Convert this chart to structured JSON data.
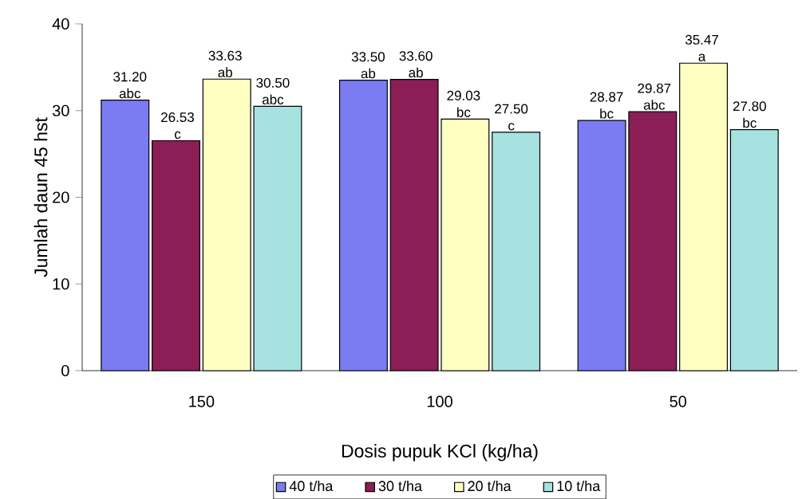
{
  "chart_data": {
    "type": "bar",
    "xlabel": "Dosis pupuk KCl (kg/ha)",
    "ylabel": "Jumlah  daun 45 hst",
    "categories": [
      "150",
      "100",
      "50"
    ],
    "series": [
      {
        "name": "40 t/ha",
        "color": "#7b7bf2",
        "values": [
          31.2,
          33.5,
          28.87
        ],
        "value_labels": [
          "31.20 abc",
          "33.50 ab",
          "28.87 bc"
        ]
      },
      {
        "name": "30 t/ha",
        "color": "#8b1e55",
        "values": [
          26.53,
          33.6,
          29.87
        ],
        "value_labels": [
          "26.53 c",
          "33.60 ab",
          "29.87 abc"
        ]
      },
      {
        "name": "20 t/ha",
        "color": "#ffffc2",
        "values": [
          33.63,
          29.03,
          35.47
        ],
        "value_labels": [
          "33.63 ab",
          "29.03 bc",
          "35.47 a"
        ]
      },
      {
        "name": "10 t/ha",
        "color": "#a6e2e0",
        "values": [
          30.5,
          27.5,
          27.8
        ],
        "value_labels": [
          "30.50 abc",
          "27.50 c",
          "27.80 bc"
        ]
      }
    ],
    "ylim": [
      0,
      40
    ],
    "yticks": [
      0,
      10,
      20,
      30,
      40
    ],
    "grid": false,
    "legend": "bottom"
  }
}
